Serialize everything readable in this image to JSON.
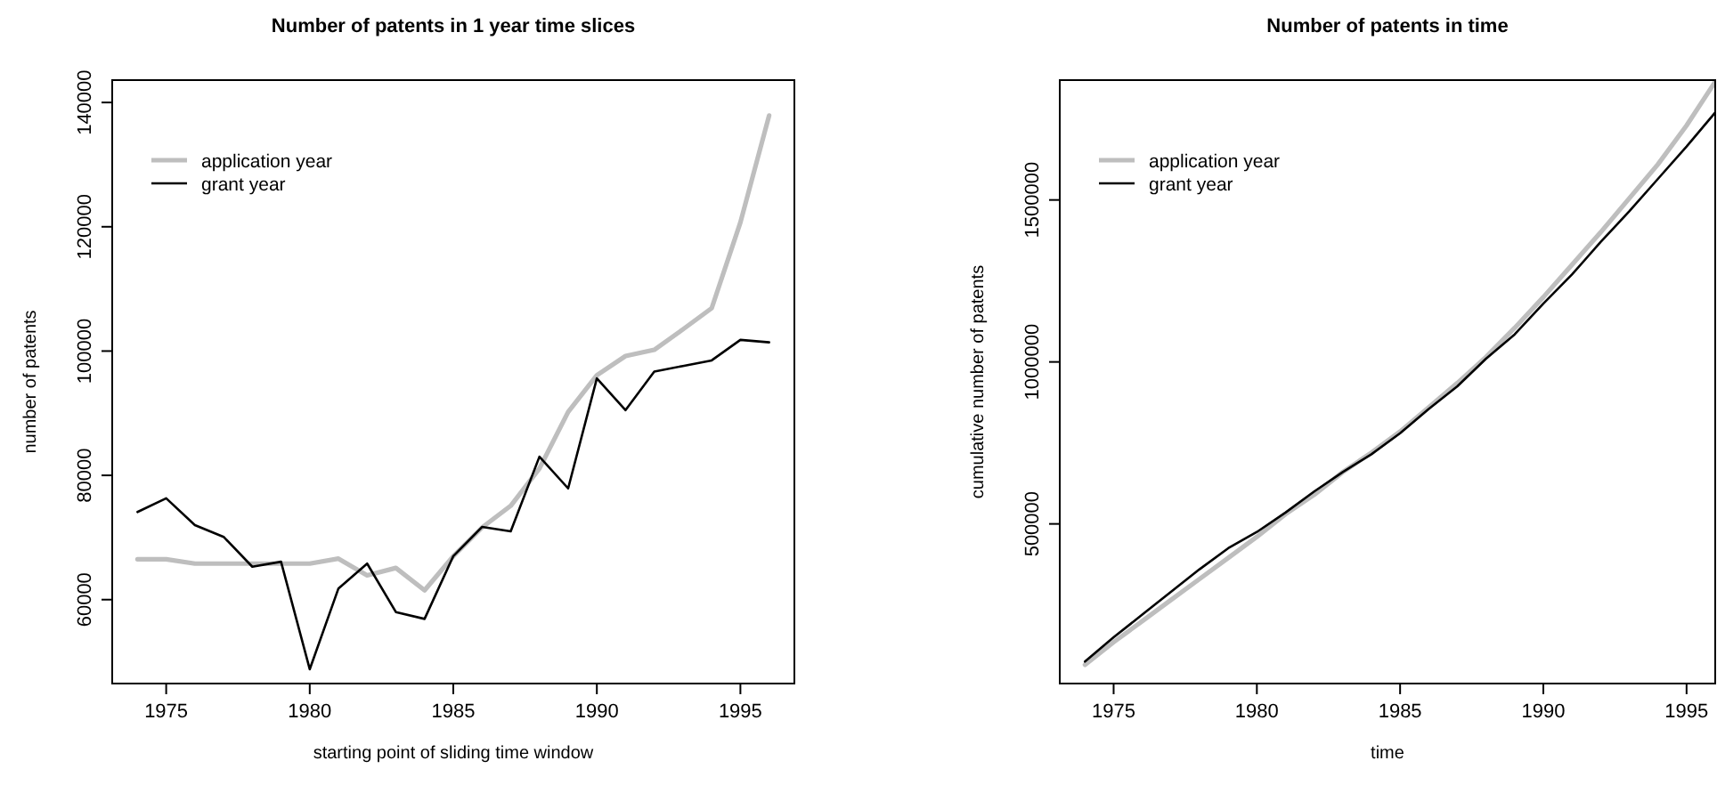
{
  "chart_data": [
    {
      "type": "line",
      "title": "Number of patents in 1 year time slices",
      "xlabel": "starting point of sliding time window",
      "ylabel": "number of patents",
      "x": [
        1974,
        1975,
        1976,
        1977,
        1978,
        1979,
        1980,
        1981,
        1982,
        1983,
        1984,
        1985,
        1986,
        1987,
        1988,
        1989,
        1990,
        1991,
        1992,
        1993,
        1994,
        1995,
        1996
      ],
      "series": [
        {
          "name": "application year",
          "color": "#bebebe",
          "values": [
            66500,
            66500,
            65800,
            65800,
            65800,
            65800,
            65800,
            66600,
            63900,
            65100,
            61500,
            67000,
            71600,
            75100,
            81100,
            90200,
            96100,
            99200,
            100200,
            103500,
            106900,
            120700,
            137900
          ]
        },
        {
          "name": "grant year",
          "color": "#000000",
          "values": [
            74100,
            76300,
            72000,
            70100,
            65300,
            66100,
            48800,
            61800,
            65800,
            58000,
            56900,
            67000,
            71700,
            71000,
            83000,
            77900,
            95600,
            90500,
            96700,
            97600,
            98500,
            101800,
            101400
          ]
        }
      ],
      "xlim": [
        1973.12,
        1996.88
      ],
      "xticks": [
        1975,
        1980,
        1985,
        1990,
        1995
      ],
      "ylim": [
        46500,
        143600
      ],
      "yticks": [
        60000,
        80000,
        100000,
        120000,
        140000
      ],
      "legend": "top left",
      "grid": false,
      "line_style": "solid"
    },
    {
      "type": "line",
      "title": "Number of patents in time",
      "xlabel": "time",
      "ylabel": "cumulative number of patents",
      "x": [
        1974,
        1975,
        1976,
        1977,
        1978,
        1979,
        1980,
        1981,
        1982,
        1983,
        1984,
        1985,
        1986,
        1987,
        1988,
        1989,
        1990,
        1991,
        1992,
        1993,
        1994,
        1995,
        1996
      ],
      "series": [
        {
          "name": "application year",
          "color": "#bebebe",
          "values": [
            65000,
            135000,
            200000,
            265000,
            330000,
            395000,
            460000,
            530000,
            590000,
            660000,
            720000,
            785000,
            860000,
            935000,
            1015000,
            1105000,
            1200000,
            1300000,
            1400000,
            1505000,
            1610000,
            1730000,
            1865000
          ]
        },
        {
          "name": "grant year",
          "color": "#000000",
          "values": [
            75000,
            150000,
            220000,
            290000,
            360000,
            425000,
            475000,
            535000,
            600000,
            660000,
            715000,
            780000,
            855000,
            925000,
            1010000,
            1085000,
            1180000,
            1270000,
            1370000,
            1465000,
            1565000,
            1665000,
            1770000
          ]
        }
      ],
      "xlim": [
        1973.12,
        1996.0
      ],
      "xticks": [
        1975,
        1980,
        1985,
        1990,
        1995
      ],
      "ylim": [
        7200,
        1870000
      ],
      "yticks": [
        500000,
        1000000,
        1500000
      ],
      "legend": "top left",
      "grid": false,
      "line_style": "solid"
    }
  ]
}
